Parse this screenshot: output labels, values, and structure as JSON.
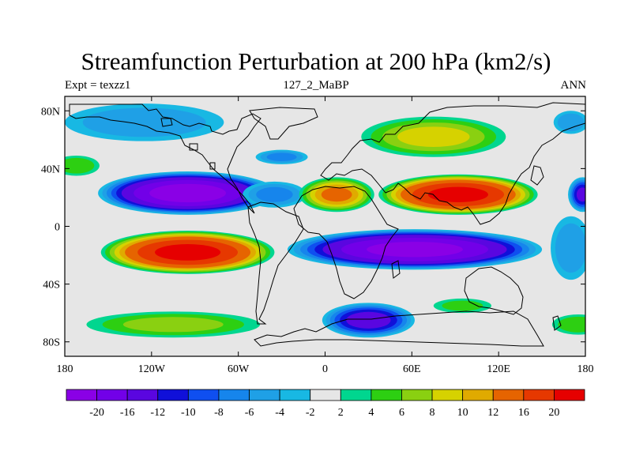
{
  "title": "Streamfunction Perturbation at 200 hPa (km2/s)",
  "subtitle_left": "Expt = texzz1",
  "subtitle_center": "127_2_MaBP",
  "subtitle_right": "ANN",
  "map": {
    "type": "filled-contour-map",
    "projection": "cylindrical-equidistant",
    "lon_range": [
      -180,
      180
    ],
    "lat_range": [
      -90,
      90
    ],
    "lon_ticks": [
      {
        "value": -180,
        "label": "180"
      },
      {
        "value": -120,
        "label": "120W"
      },
      {
        "value": -60,
        "label": "60W"
      },
      {
        "value": 0,
        "label": "0"
      },
      {
        "value": 60,
        "label": "60E"
      },
      {
        "value": 120,
        "label": "120E"
      },
      {
        "value": 180,
        "label": "180"
      }
    ],
    "lat_ticks": [
      {
        "value": 80,
        "label": "80N"
      },
      {
        "value": 40,
        "label": "40N"
      },
      {
        "value": 0,
        "label": "0"
      },
      {
        "value": -40,
        "label": "40S"
      },
      {
        "value": -80,
        "label": "80S"
      }
    ],
    "background_color": "#e6e6e6",
    "features": [
      {
        "name": "northern-subtropical-low",
        "lon": -95,
        "lat": 23,
        "rx_deg": 62,
        "ry_deg": 15,
        "peak": -22
      },
      {
        "name": "northern-subtropical-low-east",
        "lon": -35,
        "lat": 22,
        "rx_deg": 22,
        "ry_deg": 9,
        "peak": -6
      },
      {
        "name": "north-pacific-low",
        "lon": -125,
        "lat": 72,
        "rx_deg": 55,
        "ry_deg": 13,
        "peak": -5
      },
      {
        "name": "north-atlantic-low",
        "lon": -30,
        "lat": 48,
        "rx_deg": 18,
        "ry_deg": 5,
        "peak": -6
      },
      {
        "name": "dateline-west-high",
        "lon": -172,
        "lat": 42,
        "rx_deg": 16,
        "ry_deg": 7,
        "peak": 5
      },
      {
        "name": "southern-pacific-high",
        "lon": -95,
        "lat": -18,
        "rx_deg": 60,
        "ry_deg": 15,
        "peak": 21
      },
      {
        "name": "africa-high",
        "lon": 8,
        "lat": 22,
        "rx_deg": 26,
        "ry_deg": 12,
        "peak": 12
      },
      {
        "name": "asia-high",
        "lon": 92,
        "lat": 22,
        "rx_deg": 55,
        "ry_deg": 14,
        "peak": 21
      },
      {
        "name": "eurasia-high",
        "lon": 75,
        "lat": 62,
        "rx_deg": 50,
        "ry_deg": 14,
        "peak": 8
      },
      {
        "name": "southern-indian-low",
        "lon": 62,
        "lat": -16,
        "rx_deg": 88,
        "ry_deg": 14,
        "peak": -21
      },
      {
        "name": "southern-atlantic-low",
        "lon": 30,
        "lat": -65,
        "rx_deg": 32,
        "ry_deg": 12,
        "peak": -13
      },
      {
        "name": "southern-pacific-ring-high",
        "lon": -105,
        "lat": -68,
        "rx_deg": 60,
        "ry_deg": 9,
        "peak": 6
      },
      {
        "name": "southern-indian-ring-high",
        "lon": 95,
        "lat": -55,
        "rx_deg": 20,
        "ry_deg": 5,
        "peak": 4
      },
      {
        "name": "southeast-pacific-high",
        "lon": 175,
        "lat": -68,
        "rx_deg": 18,
        "ry_deg": 7,
        "peak": 5
      },
      {
        "name": "north-pacific-east-low",
        "lon": 170,
        "lat": 72,
        "rx_deg": 12,
        "ry_deg": 8,
        "peak": -5
      },
      {
        "name": "west-pacific-low",
        "lon": 178,
        "lat": 22,
        "rx_deg": 10,
        "ry_deg": 12,
        "peak": -12
      },
      {
        "name": "west-pacific-low-edge",
        "lon": 170,
        "lat": -15,
        "rx_deg": 14,
        "ry_deg": 22,
        "peak": -5
      }
    ]
  },
  "colorbar": {
    "colors": [
      "#8a00e6",
      "#7200e8",
      "#5a06e0",
      "#1010d9",
      "#0f4ff0",
      "#1685ec",
      "#1fa0e6",
      "#18b8e3",
      "#e6e6e6",
      "#00d68f",
      "#2dcf12",
      "#8ad011",
      "#d6d200",
      "#e0aa00",
      "#e66400",
      "#e63800",
      "#e60000"
    ],
    "labels": [
      "-20",
      "-16",
      "-12",
      "-10",
      "-8",
      "-6",
      "-4",
      "-2",
      "2",
      "4",
      "6",
      "8",
      "10",
      "12",
      "16",
      "20"
    ],
    "thresholds": [
      -20,
      -16,
      -12,
      -10,
      -8,
      -6,
      -4,
      -2,
      2,
      4,
      6,
      8,
      10,
      12,
      16,
      20
    ]
  }
}
